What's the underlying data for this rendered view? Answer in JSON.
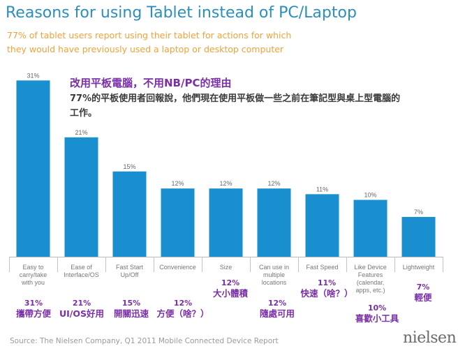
{
  "header": {
    "title": "Reasons for using Tablet instead of PC/Laptop",
    "subtitle": "77% of tablet users report using their tablet for actions for which they would have previously used a laptop or desktop computer"
  },
  "annotation": {
    "title": "改用平板電腦，不用NB/PC的理由",
    "body": "77%的平板使用者回報說，他們現在使用平板做一些之前在筆記型與桌上型電腦的工作。"
  },
  "footer": {
    "source": "Source: The Nielsen Company, Q1 2011 Mobile Connected Device Report",
    "logo": "nielsen"
  },
  "colors": {
    "bar": "#1a8fd0",
    "title": "#2a8fbd",
    "subtitle": "#f0a23a",
    "annotation": "#7a2fa8"
  },
  "chart_data": {
    "type": "bar",
    "title": "Reasons for using Tablet instead of PC/Laptop",
    "ylim": [
      0,
      32
    ],
    "grid": false,
    "categories": [
      [
        "Easy to",
        "carry/take",
        "with you"
      ],
      [
        "Ease of",
        "Interface/OS"
      ],
      [
        "Fast Start",
        "Up/Off"
      ],
      [
        "Convenience"
      ],
      [
        "Size"
      ],
      [
        "Can use in",
        "multiple",
        "locations"
      ],
      [
        "Fast Speed"
      ],
      [
        "Like Device",
        "Features",
        "(calendar,",
        "apps, etc.)"
      ],
      [
        "Lightweight"
      ]
    ],
    "values": [
      31,
      21,
      15,
      12,
      12,
      12,
      11,
      10,
      7
    ],
    "value_labels": [
      "31%",
      "21%",
      "15%",
      "12%",
      "12%",
      "12%",
      "11%",
      "10%",
      "7%"
    ],
    "translations": [
      {
        "pct": "31%",
        "text": "攜帶方便"
      },
      {
        "pct": "21%",
        "text": "UI/OS好用"
      },
      {
        "pct": "15%",
        "text": "開關迅速"
      },
      {
        "pct": "12%",
        "text": "方便（啥？）"
      },
      {
        "pct": "12%",
        "text": "大小體積"
      },
      {
        "pct": "12%",
        "text": "隨處可用"
      },
      {
        "pct": "11%",
        "text": "快速（啥？）"
      },
      {
        "pct": "10%",
        "text": "喜歡小工具"
      },
      {
        "pct": "7%",
        "text": "輕便"
      }
    ]
  }
}
